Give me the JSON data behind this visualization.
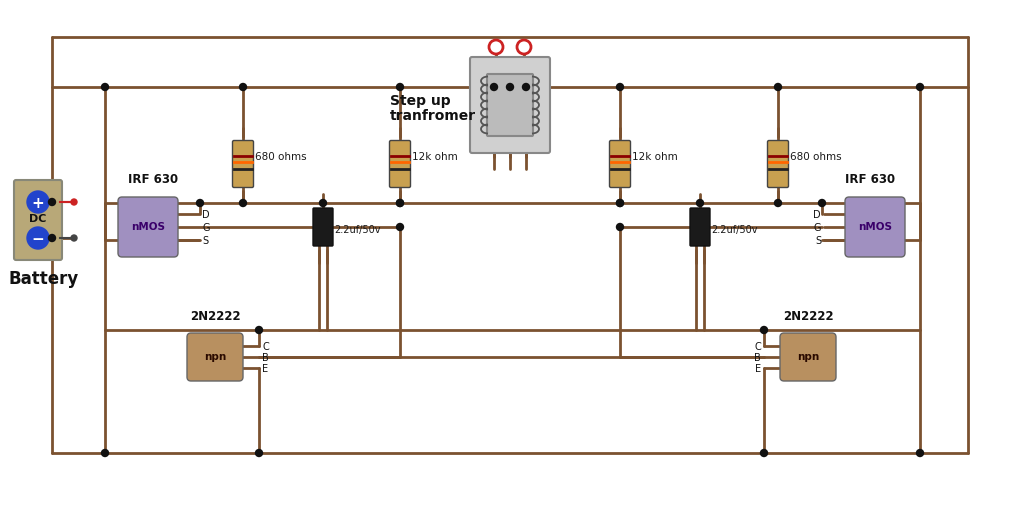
{
  "bg_color": "#ffffff",
  "wire_color": "#7B5230",
  "wire_lw": 2.0,
  "dot_color": "#111111",
  "resistor_body_color": "#C8A050",
  "resistor_band1_color": "#8B0000",
  "resistor_band2_color": "#FF6600",
  "resistor_band3_color": "#222222",
  "cap_body_color": "#1a1a1a",
  "mosfet_body_color": "#A090C0",
  "mosfet_text_color": "#3a006a",
  "mosfet_text": "nMOS",
  "npn_body_color": "#B89060",
  "npn_text_color": "#2a0a00",
  "npn_text": "npn",
  "battery_body_color": "#B8A878",
  "battery_plus_color": "#2244CC",
  "battery_minus_color": "#2244CC",
  "battery_dc_color": "#111111",
  "terminal_red": "#CC2222",
  "terminal_gray": "#444444",
  "transformer_outer_color": "#BBBBBB",
  "transformer_inner_color": "#CCCCCC",
  "transformer_winding_color": "#555555",
  "label_680": "680 ohms",
  "label_12k": "12k ohm",
  "label_cap": "2.2uf/50v",
  "label_2n": "2N2222",
  "label_irf": "IRF 630",
  "label_battery": "Battery",
  "label_transformer_line1": "Step up",
  "label_transformer_line2": "tranfromer",
  "label_d": "D",
  "label_g": "G",
  "label_s": "S",
  "label_c": "C",
  "label_b": "B",
  "label_e": "E",
  "label_dc": "DC"
}
